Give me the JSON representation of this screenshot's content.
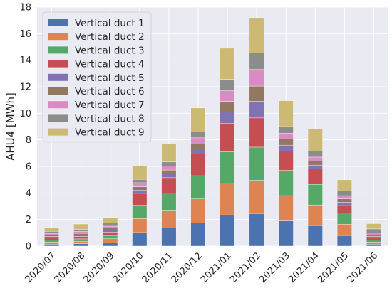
{
  "chart_data": {
    "type": "bar",
    "stacked": true,
    "title": "",
    "xlabel": "",
    "ylabel": "AHU4 [MWh]",
    "ylim": [
      0,
      18
    ],
    "yticks": [
      0,
      2,
      4,
      6,
      8,
      10,
      12,
      14,
      16,
      18
    ],
    "grid": true,
    "legend_position": "top-left",
    "categories": [
      "2020/07",
      "2020/08",
      "2020/09",
      "2020/10",
      "2020/11",
      "2020/12",
      "2021/01",
      "2021/02",
      "2021/03",
      "2021/04",
      "2021/05",
      "2021/06"
    ],
    "series": [
      {
        "name": "Vertical duct 1",
        "color": "#4C72B0",
        "values": [
          0.15,
          0.18,
          0.25,
          1.02,
          1.35,
          1.75,
          2.35,
          2.45,
          1.9,
          1.55,
          0.8,
          0.15
        ]
      },
      {
        "name": "Vertical duct 2",
        "color": "#DD8452",
        "values": [
          0.15,
          0.18,
          0.3,
          1.05,
          1.35,
          1.8,
          2.4,
          2.5,
          1.9,
          1.55,
          0.85,
          0.15
        ]
      },
      {
        "name": "Vertical duct 3",
        "color": "#55A868",
        "values": [
          0.15,
          0.18,
          0.25,
          1.0,
          1.3,
          1.75,
          2.35,
          2.5,
          1.9,
          1.55,
          0.85,
          0.15
        ]
      },
      {
        "name": "Vertical duct 4",
        "color": "#C44E52",
        "values": [
          0.15,
          0.18,
          0.25,
          0.9,
          1.15,
          1.65,
          2.15,
          2.2,
          1.45,
          1.15,
          0.55,
          0.15
        ]
      },
      {
        "name": "Vertical duct 5",
        "color": "#8172B3",
        "values": [
          0.12,
          0.12,
          0.15,
          0.25,
          0.28,
          0.35,
          0.85,
          1.25,
          0.45,
          0.3,
          0.25,
          0.12
        ]
      },
      {
        "name": "Vertical duct 6",
        "color": "#937860",
        "values": [
          0.12,
          0.12,
          0.15,
          0.25,
          0.3,
          0.4,
          0.8,
          1.15,
          0.45,
          0.3,
          0.25,
          0.12
        ]
      },
      {
        "name": "Vertical duct 7",
        "color": "#DA8BC3",
        "values": [
          0.12,
          0.15,
          0.15,
          0.3,
          0.3,
          0.45,
          0.8,
          1.25,
          0.45,
          0.3,
          0.25,
          0.15
        ]
      },
      {
        "name": "Vertical duct 8",
        "color": "#8C8C8C",
        "values": [
          0.15,
          0.15,
          0.25,
          0.25,
          0.3,
          0.45,
          0.85,
          1.25,
          0.5,
          0.45,
          0.35,
          0.3
        ]
      },
      {
        "name": "Vertical duct 9",
        "color": "#CCB974",
        "values": [
          0.3,
          0.4,
          0.4,
          1.0,
          1.35,
          1.8,
          2.35,
          2.6,
          1.95,
          1.65,
          0.85,
          0.4
        ]
      }
    ]
  }
}
